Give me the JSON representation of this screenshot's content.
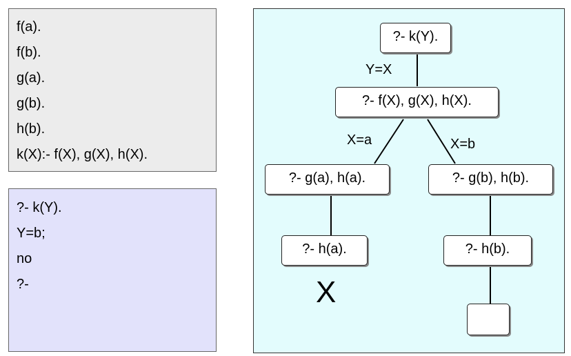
{
  "program": {
    "lines": [
      "f(a).",
      "f(b).",
      "g(a).",
      "g(b).",
      "h(b).",
      "k(X):- f(X), g(X), h(X)."
    ]
  },
  "query": {
    "lines": [
      "?- k(Y).",
      "Y=b;",
      "no",
      "?-"
    ]
  },
  "tree": {
    "root": "?- k(Y).",
    "edge_root": "Y=X",
    "level1": "?- f(X), g(X), h(X).",
    "edge_left": "X=a",
    "edge_right": "X=b",
    "left": "?- g(a), h(a).",
    "right": "?- g(b), h(b).",
    "left_child": "?- h(a).",
    "right_child": "?- h(b).",
    "fail_mark": "X",
    "success_leaf": ""
  }
}
